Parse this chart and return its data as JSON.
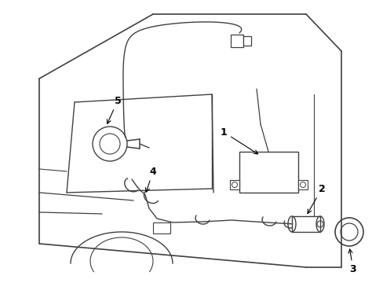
{
  "bg_color": "#ffffff",
  "line_color": "#404040",
  "label_color": "#000000",
  "fig_width": 4.89,
  "fig_height": 3.6,
  "dpi": 100
}
